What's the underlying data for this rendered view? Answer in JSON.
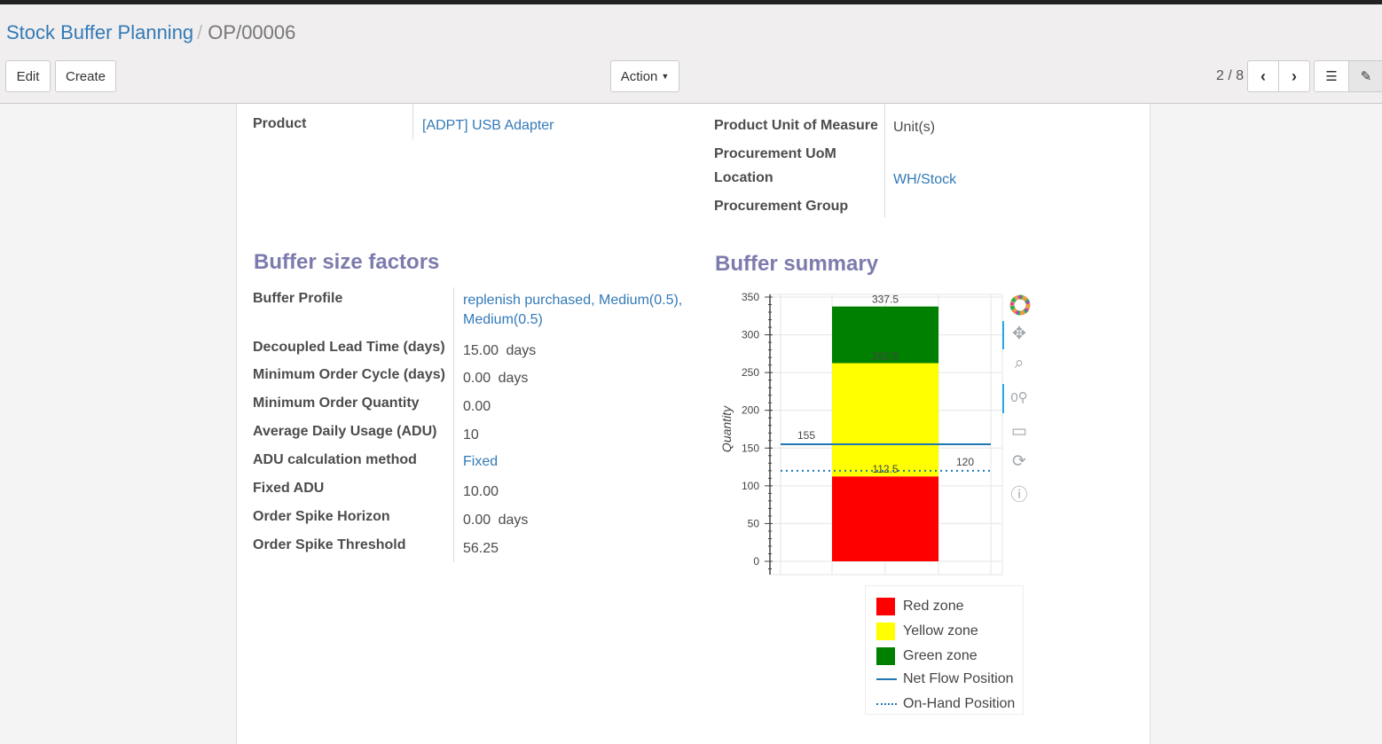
{
  "breadcrumb": {
    "parent": "Stock Buffer Planning",
    "current": "OP/00006"
  },
  "buttons": {
    "edit": "Edit",
    "create": "Create",
    "action": "Action"
  },
  "pager": {
    "value": "2 / 8"
  },
  "fields_top": {
    "product_label": "Product",
    "product_value": "[ADPT] USB Adapter",
    "uom_label": "Product Unit of Measure",
    "uom_value": "Unit(s)",
    "proc_uom_label": "Procurement UoM",
    "location_label": "Location",
    "location_value": "WH/Stock",
    "proc_group_label": "Procurement Group"
  },
  "factors": {
    "title": "Buffer size factors",
    "rows": [
      {
        "label": "Buffer Profile",
        "value": "replenish purchased, Medium(0.5), Medium(0.5)",
        "unit": "",
        "link": true
      },
      {
        "label": "Decoupled Lead Time (days)",
        "value": "15.00",
        "unit": "days"
      },
      {
        "label": "Minimum Order Cycle (days)",
        "value": "0.00",
        "unit": "days"
      },
      {
        "label": "Minimum Order Quantity",
        "value": "0.00",
        "unit": ""
      },
      {
        "label": "Average Daily Usage (ADU)",
        "value": "10",
        "unit": ""
      },
      {
        "label": "ADU calculation method",
        "value": "Fixed",
        "unit": "",
        "link": true
      },
      {
        "label": "Fixed ADU",
        "value": "10.00",
        "unit": ""
      },
      {
        "label": "Order Spike Horizon",
        "value": "0.00",
        "unit": "days"
      },
      {
        "label": "Order Spike Threshold",
        "value": "56.25",
        "unit": ""
      }
    ]
  },
  "summary": {
    "title": "Buffer summary"
  },
  "chart_data": {
    "type": "bar",
    "ylabel": "Quantity",
    "ylim": [
      0,
      350
    ],
    "yticks": [
      0,
      50,
      100,
      150,
      200,
      250,
      300,
      350
    ],
    "grid": true,
    "stack": [
      {
        "name": "Red zone",
        "from": 0,
        "to": 112.5,
        "color": "#ff0000"
      },
      {
        "name": "Yellow zone",
        "from": 112.5,
        "to": 262.5,
        "color": "#ffff00"
      },
      {
        "name": "Green zone",
        "from": 262.5,
        "to": 337.5,
        "color": "#008000"
      }
    ],
    "bar_labels": [
      "112.5",
      "262.5",
      "337.5"
    ],
    "lines": [
      {
        "name": "Net Flow Position",
        "value": 155,
        "label": "155",
        "style": "solid",
        "color": "#1f77b4"
      },
      {
        "name": "On-Hand Position",
        "value": 120,
        "label": "120",
        "style": "dotted",
        "color": "#1f77b4"
      }
    ],
    "legend": [
      "Red zone",
      "Yellow zone",
      "Green zone",
      "Net Flow Position",
      "On-Hand Position"
    ],
    "legend_position": "bottom"
  },
  "toolbar": [
    "bokeh-logo-icon",
    "pan-icon",
    "box-zoom-icon",
    "wheel-zoom-icon",
    "save-icon",
    "reset-icon",
    "help-icon"
  ]
}
